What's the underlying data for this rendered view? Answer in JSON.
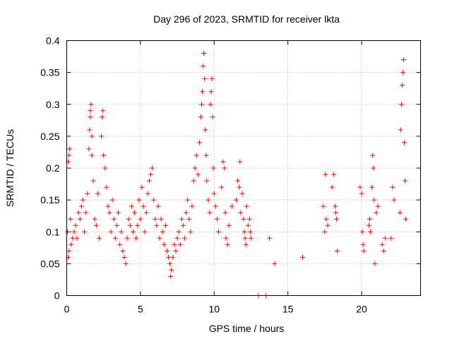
{
  "chart_data": {
    "type": "scatter",
    "title": "Day 296 of 2023, SRMTID for receiver lkta",
    "xlabel": "GPS time / hours",
    "ylabel": "SRMTID / TECUs",
    "xlim": [
      0,
      24
    ],
    "ylim": [
      0,
      0.4
    ],
    "x_ticks": [
      0,
      5,
      10,
      15,
      20
    ],
    "x_tick_labels": [
      "0",
      "5",
      "10",
      "15",
      "20"
    ],
    "y_ticks": [
      0,
      0.05,
      0.1,
      0.15,
      0.2,
      0.25,
      0.3,
      0.35,
      0.4
    ],
    "y_tick_labels": [
      "0",
      "0.05",
      "0.1",
      "0.15",
      "0.2",
      "0.25",
      "0.3",
      "0.35",
      "0.4"
    ],
    "grid": true,
    "marker": "+",
    "color": "#ff0000",
    "series": [
      {
        "name": "SRMTID",
        "points": [
          [
            0.05,
            0.1
          ],
          [
            0.1,
            0.21
          ],
          [
            0.15,
            0.22
          ],
          [
            0.2,
            0.23
          ],
          [
            0.25,
            0.12
          ],
          [
            0.1,
            0.06
          ],
          [
            0.15,
            0.07
          ],
          [
            0.3,
            0.08
          ],
          [
            0.4,
            0.09
          ],
          [
            0.5,
            0.1
          ],
          [
            0.6,
            0.11
          ],
          [
            0.7,
            0.09
          ],
          [
            0.8,
            0.13
          ],
          [
            0.9,
            0.12
          ],
          [
            1.0,
            0.14
          ],
          [
            1.1,
            0.15
          ],
          [
            1.2,
            0.1
          ],
          [
            1.3,
            0.13
          ],
          [
            1.4,
            0.16
          ],
          [
            1.5,
            0.23
          ],
          [
            1.55,
            0.26
          ],
          [
            1.6,
            0.28
          ],
          [
            1.6,
            0.29
          ],
          [
            1.65,
            0.3
          ],
          [
            1.7,
            0.25
          ],
          [
            1.7,
            0.22
          ],
          [
            1.8,
            0.18
          ],
          [
            1.9,
            0.12
          ],
          [
            2.0,
            0.11
          ],
          [
            2.1,
            0.16
          ],
          [
            2.2,
            0.09
          ],
          [
            2.35,
            0.25
          ],
          [
            2.4,
            0.28
          ],
          [
            2.45,
            0.29
          ],
          [
            2.5,
            0.22
          ],
          [
            2.6,
            0.2
          ],
          [
            2.7,
            0.17
          ],
          [
            2.8,
            0.14
          ],
          [
            2.9,
            0.13
          ],
          [
            3.0,
            0.1
          ],
          [
            3.1,
            0.15
          ],
          [
            3.2,
            0.12
          ],
          [
            3.3,
            0.09
          ],
          [
            3.4,
            0.11
          ],
          [
            3.5,
            0.13
          ],
          [
            3.6,
            0.08
          ],
          [
            3.7,
            0.1
          ],
          [
            3.8,
            0.07
          ],
          [
            3.9,
            0.06
          ],
          [
            4.0,
            0.05
          ],
          [
            4.1,
            0.09
          ],
          [
            4.2,
            0.12
          ],
          [
            4.3,
            0.11
          ],
          [
            4.4,
            0.14
          ],
          [
            4.5,
            0.1
          ],
          [
            4.6,
            0.13
          ],
          [
            4.7,
            0.09
          ],
          [
            4.8,
            0.11
          ],
          [
            4.9,
            0.15
          ],
          [
            5.0,
            0.12
          ],
          [
            5.1,
            0.17
          ],
          [
            5.2,
            0.14
          ],
          [
            5.3,
            0.1
          ],
          [
            5.4,
            0.13
          ],
          [
            5.5,
            0.16
          ],
          [
            5.6,
            0.18
          ],
          [
            5.7,
            0.19
          ],
          [
            5.8,
            0.2
          ],
          [
            5.9,
            0.15
          ],
          [
            6.0,
            0.12
          ],
          [
            6.1,
            0.11
          ],
          [
            6.2,
            0.14
          ],
          [
            6.3,
            0.09
          ],
          [
            6.4,
            0.12
          ],
          [
            6.5,
            0.1
          ],
          [
            6.6,
            0.08
          ],
          [
            6.7,
            0.11
          ],
          [
            6.8,
            0.07
          ],
          [
            6.9,
            0.06
          ],
          [
            7.0,
            0.05
          ],
          [
            7.05,
            0.03
          ],
          [
            7.1,
            0.04
          ],
          [
            7.2,
            0.06
          ],
          [
            7.3,
            0.08
          ],
          [
            7.4,
            0.07
          ],
          [
            7.5,
            0.09
          ],
          [
            7.6,
            0.1
          ],
          [
            7.7,
            0.08
          ],
          [
            7.8,
            0.12
          ],
          [
            7.9,
            0.11
          ],
          [
            8.0,
            0.09
          ],
          [
            8.1,
            0.13
          ],
          [
            8.2,
            0.15
          ],
          [
            8.3,
            0.12
          ],
          [
            8.4,
            0.1
          ],
          [
            8.5,
            0.14
          ],
          [
            8.6,
            0.18
          ],
          [
            8.7,
            0.2
          ],
          [
            8.8,
            0.22
          ],
          [
            8.9,
            0.19
          ],
          [
            9.0,
            0.24
          ],
          [
            9.1,
            0.28
          ],
          [
            9.15,
            0.3
          ],
          [
            9.2,
            0.32
          ],
          [
            9.25,
            0.36
          ],
          [
            9.3,
            0.38
          ],
          [
            9.35,
            0.34
          ],
          [
            9.4,
            0.26
          ],
          [
            9.45,
            0.22
          ],
          [
            9.5,
            0.18
          ],
          [
            9.6,
            0.15
          ],
          [
            9.7,
            0.13
          ],
          [
            9.75,
            0.3
          ],
          [
            9.8,
            0.32
          ],
          [
            9.85,
            0.34
          ],
          [
            9.9,
            0.28
          ],
          [
            9.95,
            0.2
          ],
          [
            10.0,
            0.16
          ],
          [
            10.1,
            0.14
          ],
          [
            10.2,
            0.12
          ],
          [
            10.3,
            0.1
          ],
          [
            10.5,
            0.17
          ],
          [
            10.6,
            0.21
          ],
          [
            10.7,
            0.2
          ],
          [
            10.75,
            0.13
          ],
          [
            10.8,
            0.09
          ],
          [
            10.9,
            0.08
          ],
          [
            11.0,
            0.11
          ],
          [
            11.2,
            0.14
          ],
          [
            11.5,
            0.15
          ],
          [
            11.6,
            0.18
          ],
          [
            11.7,
            0.17
          ],
          [
            11.75,
            0.21
          ],
          [
            11.8,
            0.13
          ],
          [
            11.9,
            0.16
          ],
          [
            12.0,
            0.12
          ],
          [
            12.05,
            0.1
          ],
          [
            12.1,
            0.09
          ],
          [
            12.15,
            0.08
          ],
          [
            12.2,
            0.14
          ],
          [
            12.3,
            0.11
          ],
          [
            12.4,
            0.12
          ],
          [
            12.45,
            0.1
          ],
          [
            12.5,
            0.09
          ],
          [
            13.0,
            0.0
          ],
          [
            13.5,
            0.0
          ],
          [
            13.75,
            0.09
          ],
          [
            14.1,
            0.05
          ],
          [
            16.0,
            0.06
          ],
          [
            17.4,
            0.14
          ],
          [
            17.5,
            0.1
          ],
          [
            17.55,
            0.19
          ],
          [
            17.6,
            0.12
          ],
          [
            17.7,
            0.11
          ],
          [
            18.0,
            0.17
          ],
          [
            18.1,
            0.19
          ],
          [
            18.2,
            0.14
          ],
          [
            18.25,
            0.13
          ],
          [
            18.3,
            0.12
          ],
          [
            18.35,
            0.07
          ],
          [
            19.9,
            0.17
          ],
          [
            20.0,
            0.16
          ],
          [
            20.05,
            0.1
          ],
          [
            20.1,
            0.08
          ],
          [
            20.15,
            0.07
          ],
          [
            20.5,
            0.11
          ],
          [
            20.55,
            0.12
          ],
          [
            20.6,
            0.1
          ],
          [
            20.7,
            0.17
          ],
          [
            20.75,
            0.22
          ],
          [
            20.8,
            0.2
          ],
          [
            20.85,
            0.15
          ],
          [
            20.9,
            0.05
          ],
          [
            21.0,
            0.13
          ],
          [
            21.1,
            0.14
          ],
          [
            21.4,
            0.08
          ],
          [
            21.5,
            0.07
          ],
          [
            21.6,
            0.09
          ],
          [
            22.0,
            0.09
          ],
          [
            22.1,
            0.17
          ],
          [
            22.2,
            0.15
          ],
          [
            22.6,
            0.13
          ],
          [
            22.65,
            0.26
          ],
          [
            22.7,
            0.3
          ],
          [
            22.75,
            0.33
          ],
          [
            22.8,
            0.35
          ],
          [
            22.85,
            0.37
          ],
          [
            22.9,
            0.24
          ],
          [
            22.95,
            0.18
          ],
          [
            23.0,
            0.12
          ]
        ]
      }
    ]
  }
}
